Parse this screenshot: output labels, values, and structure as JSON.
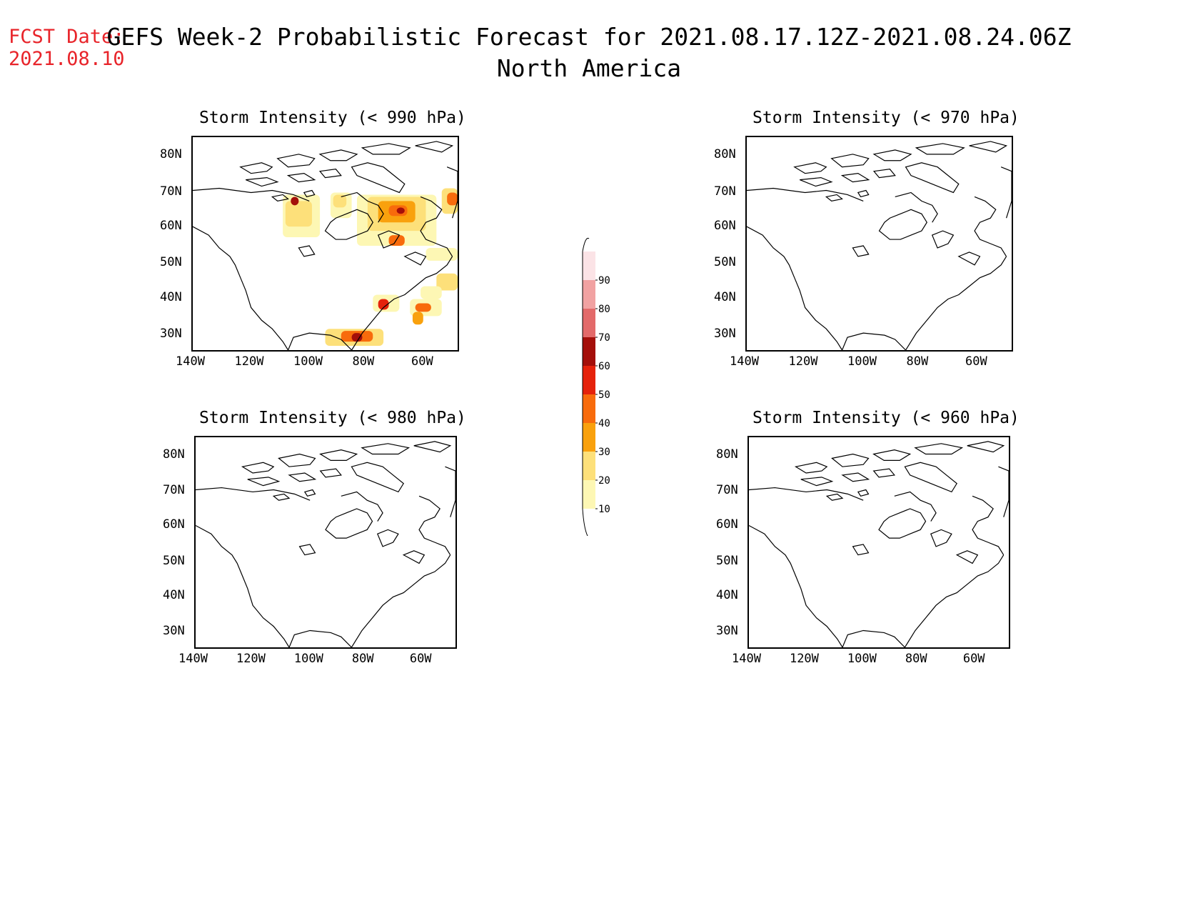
{
  "fcst": {
    "label": "FCST Date:",
    "date": "2021.08.10"
  },
  "header": {
    "title": "GEFS Week-2 Probabilistic Forecast for 2021.08.17.12Z-2021.08.24.06Z",
    "region": "North America"
  },
  "panels": [
    {
      "title": "Storm Intensity (< 990 hPa)",
      "has_field": true
    },
    {
      "title": "Storm Intensity (< 970 hPa)",
      "has_field": false
    },
    {
      "title": "Storm Intensity (< 980 hPa)",
      "has_field": false
    },
    {
      "title": "Storm Intensity (< 960 hPa)",
      "has_field": false
    }
  ],
  "axes": {
    "lat_labels": [
      "80N",
      "70N",
      "60N",
      "50N",
      "40N",
      "30N"
    ],
    "lon_labels": [
      "140W",
      "120W",
      "100W",
      "80W",
      "60W"
    ]
  },
  "colorbar": {
    "levels": [
      "10",
      "20",
      "30",
      "40",
      "50",
      "60",
      "70",
      "80",
      "90"
    ],
    "colors": [
      "#fdf7b4",
      "#fde07a",
      "#f9a10d",
      "#f86b0c",
      "#e5220b",
      "#a40f0a",
      "#e36a6a",
      "#f1a2a2",
      "#fbe3e6"
    ]
  }
}
